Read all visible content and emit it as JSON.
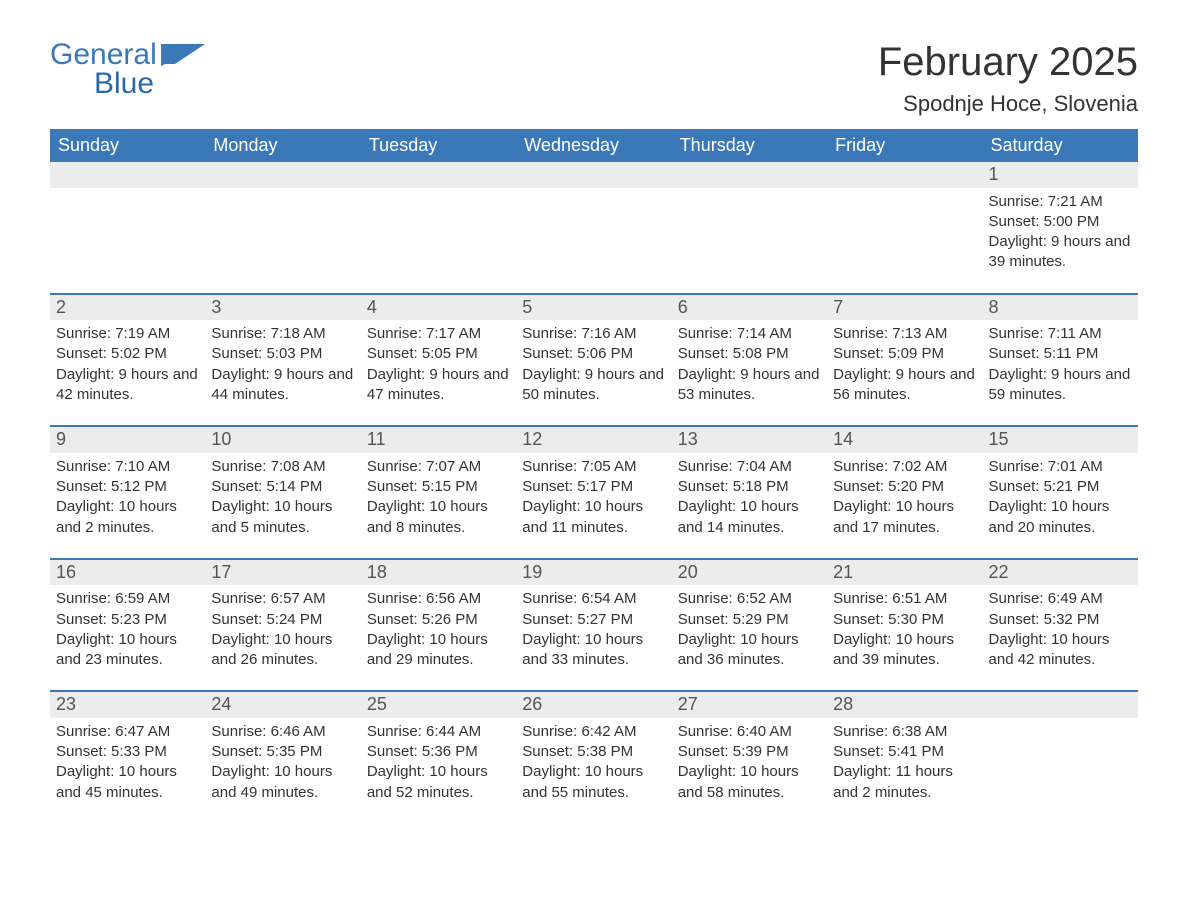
{
  "brand": {
    "word1": "General",
    "word2": "Blue"
  },
  "title": "February 2025",
  "location": "Spodnje Hoce, Slovenia",
  "colors": {
    "header_bg": "#3a78b8",
    "header_text": "#ffffff",
    "daynum_bg": "#ececec",
    "row_divider": "#3a78b8",
    "body_text": "#333333",
    "logo_color": "#3a78b8"
  },
  "fonts": {
    "title_size_pt": 40,
    "location_size_pt": 22,
    "dow_size_pt": 18,
    "daynum_size_pt": 18,
    "body_size_pt": 15
  },
  "days_of_week": [
    "Sunday",
    "Monday",
    "Tuesday",
    "Wednesday",
    "Thursday",
    "Friday",
    "Saturday"
  ],
  "weeks": [
    [
      null,
      null,
      null,
      null,
      null,
      null,
      {
        "n": "1",
        "sunrise": "7:21 AM",
        "sunset": "5:00 PM",
        "daylight": "9 hours and 39 minutes."
      }
    ],
    [
      {
        "n": "2",
        "sunrise": "7:19 AM",
        "sunset": "5:02 PM",
        "daylight": "9 hours and 42 minutes."
      },
      {
        "n": "3",
        "sunrise": "7:18 AM",
        "sunset": "5:03 PM",
        "daylight": "9 hours and 44 minutes."
      },
      {
        "n": "4",
        "sunrise": "7:17 AM",
        "sunset": "5:05 PM",
        "daylight": "9 hours and 47 minutes."
      },
      {
        "n": "5",
        "sunrise": "7:16 AM",
        "sunset": "5:06 PM",
        "daylight": "9 hours and 50 minutes."
      },
      {
        "n": "6",
        "sunrise": "7:14 AM",
        "sunset": "5:08 PM",
        "daylight": "9 hours and 53 minutes."
      },
      {
        "n": "7",
        "sunrise": "7:13 AM",
        "sunset": "5:09 PM",
        "daylight": "9 hours and 56 minutes."
      },
      {
        "n": "8",
        "sunrise": "7:11 AM",
        "sunset": "5:11 PM",
        "daylight": "9 hours and 59 minutes."
      }
    ],
    [
      {
        "n": "9",
        "sunrise": "7:10 AM",
        "sunset": "5:12 PM",
        "daylight": "10 hours and 2 minutes."
      },
      {
        "n": "10",
        "sunrise": "7:08 AM",
        "sunset": "5:14 PM",
        "daylight": "10 hours and 5 minutes."
      },
      {
        "n": "11",
        "sunrise": "7:07 AM",
        "sunset": "5:15 PM",
        "daylight": "10 hours and 8 minutes."
      },
      {
        "n": "12",
        "sunrise": "7:05 AM",
        "sunset": "5:17 PM",
        "daylight": "10 hours and 11 minutes."
      },
      {
        "n": "13",
        "sunrise": "7:04 AM",
        "sunset": "5:18 PM",
        "daylight": "10 hours and 14 minutes."
      },
      {
        "n": "14",
        "sunrise": "7:02 AM",
        "sunset": "5:20 PM",
        "daylight": "10 hours and 17 minutes."
      },
      {
        "n": "15",
        "sunrise": "7:01 AM",
        "sunset": "5:21 PM",
        "daylight": "10 hours and 20 minutes."
      }
    ],
    [
      {
        "n": "16",
        "sunrise": "6:59 AM",
        "sunset": "5:23 PM",
        "daylight": "10 hours and 23 minutes."
      },
      {
        "n": "17",
        "sunrise": "6:57 AM",
        "sunset": "5:24 PM",
        "daylight": "10 hours and 26 minutes."
      },
      {
        "n": "18",
        "sunrise": "6:56 AM",
        "sunset": "5:26 PM",
        "daylight": "10 hours and 29 minutes."
      },
      {
        "n": "19",
        "sunrise": "6:54 AM",
        "sunset": "5:27 PM",
        "daylight": "10 hours and 33 minutes."
      },
      {
        "n": "20",
        "sunrise": "6:52 AM",
        "sunset": "5:29 PM",
        "daylight": "10 hours and 36 minutes."
      },
      {
        "n": "21",
        "sunrise": "6:51 AM",
        "sunset": "5:30 PM",
        "daylight": "10 hours and 39 minutes."
      },
      {
        "n": "22",
        "sunrise": "6:49 AM",
        "sunset": "5:32 PM",
        "daylight": "10 hours and 42 minutes."
      }
    ],
    [
      {
        "n": "23",
        "sunrise": "6:47 AM",
        "sunset": "5:33 PM",
        "daylight": "10 hours and 45 minutes."
      },
      {
        "n": "24",
        "sunrise": "6:46 AM",
        "sunset": "5:35 PM",
        "daylight": "10 hours and 49 minutes."
      },
      {
        "n": "25",
        "sunrise": "6:44 AM",
        "sunset": "5:36 PM",
        "daylight": "10 hours and 52 minutes."
      },
      {
        "n": "26",
        "sunrise": "6:42 AM",
        "sunset": "5:38 PM",
        "daylight": "10 hours and 55 minutes."
      },
      {
        "n": "27",
        "sunrise": "6:40 AM",
        "sunset": "5:39 PM",
        "daylight": "10 hours and 58 minutes."
      },
      {
        "n": "28",
        "sunrise": "6:38 AM",
        "sunset": "5:41 PM",
        "daylight": "11 hours and 2 minutes."
      },
      null
    ]
  ],
  "labels": {
    "sunrise": "Sunrise",
    "sunset": "Sunset",
    "daylight": "Daylight"
  }
}
